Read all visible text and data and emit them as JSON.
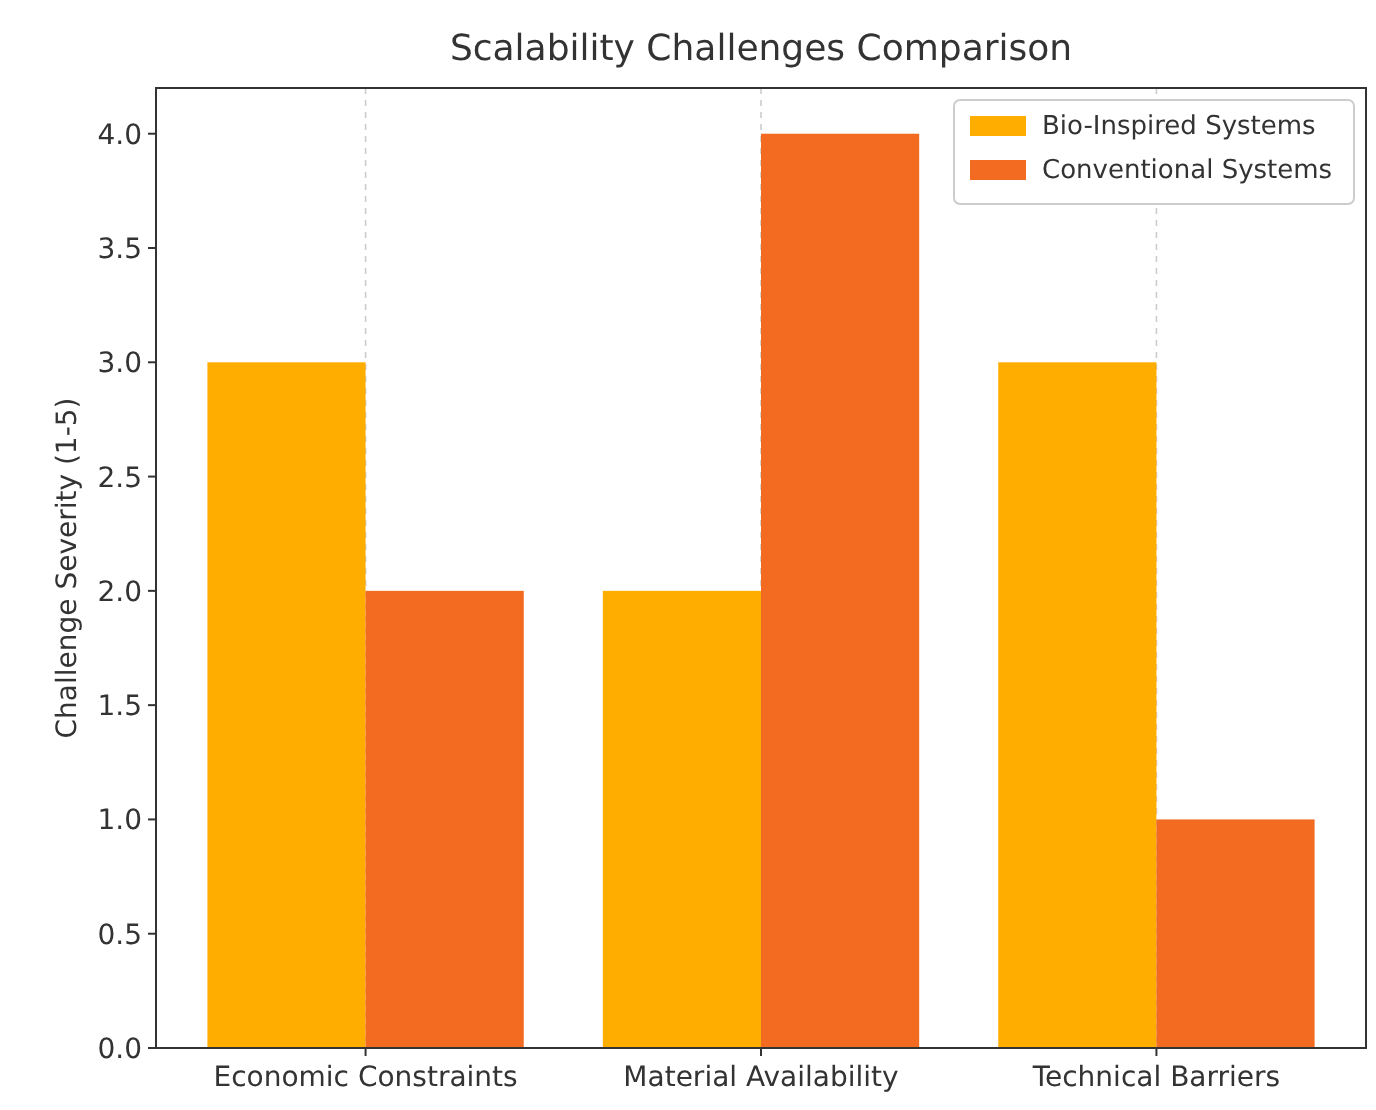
{
  "chart_data": {
    "type": "bar",
    "title": "Scalability Challenges Comparison",
    "ylabel": "Challenge Severity (1-5)",
    "categories": [
      "Economic Constraints",
      "Material Availability",
      "Technical Barriers"
    ],
    "series": [
      {
        "name": "Bio-Inspired Systems",
        "color": "#ffae00",
        "values": [
          3,
          2,
          3
        ]
      },
      {
        "name": "Conventional Systems",
        "color": "#f26b21",
        "values": [
          2,
          4,
          1
        ]
      }
    ],
    "ylim": [
      0,
      4.2
    ],
    "yticks": [
      {
        "value": 0,
        "label": "0.0"
      },
      {
        "value": 0.5,
        "label": "0.5"
      },
      {
        "value": 1,
        "label": "1.0"
      },
      {
        "value": 1.5,
        "label": "1.5"
      },
      {
        "value": 2,
        "label": "2.0"
      },
      {
        "value": 2.5,
        "label": "2.5"
      },
      {
        "value": 3,
        "label": "3.0"
      },
      {
        "value": 3.5,
        "label": "3.5"
      },
      {
        "value": 4,
        "label": "4.0"
      }
    ],
    "grid": "x",
    "legend": "top right"
  }
}
